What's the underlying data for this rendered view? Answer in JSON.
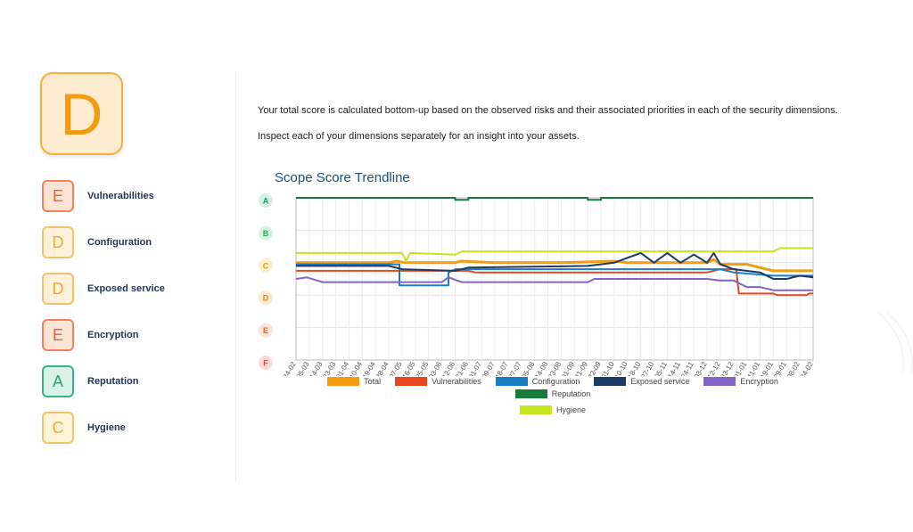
{
  "overall_grade": "D",
  "dimensions": [
    {
      "grade": "E",
      "label": "Vulnerabilities"
    },
    {
      "grade": "D",
      "label": "Configuration"
    },
    {
      "grade": "D",
      "label": "Exposed service"
    },
    {
      "grade": "E",
      "label": "Encryption"
    },
    {
      "grade": "A",
      "label": "Reputation"
    },
    {
      "grade": "C",
      "label": "Hygiene"
    }
  ],
  "intro": {
    "line1": "Your total score is calculated bottom-up based on the observed risks and their associated priorities in each of the security dimensions.",
    "line2": "Inspect each of your dimensions separately for an insight into your assets."
  },
  "chart_data": {
    "type": "line",
    "title": "Scope Score Trendline",
    "y_grades": [
      "A",
      "B",
      "C",
      "D",
      "E",
      "F"
    ],
    "y_grade_colors": {
      "A": {
        "bg": "#d4f1e4",
        "fg": "#1e9e67"
      },
      "B": {
        "bg": "#d6f3e2",
        "fg": "#27ae60"
      },
      "C": {
        "bg": "#fdf0cf",
        "fg": "#d4a017"
      },
      "D": {
        "bg": "#fdebd0",
        "fg": "#e67e22"
      },
      "E": {
        "bg": "#fbe3d6",
        "fg": "#e8642f"
      },
      "F": {
        "bg": "#fadbd8",
        "fg": "#e74c3c"
      }
    },
    "x_tick_labels": [
      "24-02",
      "05-03",
      "14-03",
      "23-03",
      "01-04",
      "10-04",
      "19-04",
      "28-04",
      "07-05",
      "16-05",
      "25-05",
      "03-06",
      "12-06",
      "21-06",
      "01-07",
      "09-07",
      "18-07",
      "27-07",
      "05-08",
      "14-08",
      "23-08",
      "01-09",
      "11-09",
      "22-09",
      "01-10",
      "10-10",
      "18-10",
      "27-10",
      "05-11",
      "14-11",
      "24-11",
      "03-12",
      "12-12",
      "23-12",
      "01-01",
      "11-01",
      "19-01",
      "29-01",
      "08-02",
      "24-02"
    ],
    "grid": true,
    "legend_position": "bottom",
    "series": [
      {
        "name": "Total",
        "color": "#f39c12",
        "width": 3,
        "points": [
          [
            0,
            2.0
          ],
          [
            7,
            2.0
          ],
          [
            7.6,
            1.95
          ],
          [
            8.2,
            2.0
          ],
          [
            12,
            2.0
          ],
          [
            12.4,
            1.95
          ],
          [
            15,
            2.0
          ],
          [
            20,
            2.0
          ],
          [
            24,
            1.95
          ],
          [
            25,
            2.0
          ],
          [
            31,
            2.0
          ],
          [
            31.5,
            1.9
          ],
          [
            32,
            2.05
          ],
          [
            34,
            2.05
          ],
          [
            35,
            2.15
          ],
          [
            36,
            2.25
          ],
          [
            39,
            2.25
          ]
        ]
      },
      {
        "name": "Vulnerabilities",
        "color": "#e8461e",
        "width": 2,
        "points": [
          [
            0,
            2.25
          ],
          [
            13,
            2.25
          ],
          [
            13.5,
            2.3
          ],
          [
            31,
            2.3
          ],
          [
            32,
            2.2
          ],
          [
            33.2,
            2.2
          ],
          [
            33.4,
            2.95
          ],
          [
            36,
            2.95
          ],
          [
            36.3,
            3.0
          ],
          [
            38.5,
            3.0
          ],
          [
            38.7,
            2.95
          ],
          [
            39,
            2.95
          ]
        ]
      },
      {
        "name": "Configuration",
        "color": "#1a7fc1",
        "width": 2,
        "points": [
          [
            0,
            2.05
          ],
          [
            7.8,
            2.05
          ],
          [
            7.8,
            2.7
          ],
          [
            11.5,
            2.7
          ],
          [
            11.5,
            2.3
          ],
          [
            12,
            2.2
          ],
          [
            31,
            2.2
          ],
          [
            32,
            2.2
          ],
          [
            33,
            2.3
          ],
          [
            36,
            2.4
          ],
          [
            39,
            2.4
          ]
        ]
      },
      {
        "name": "Exposed service",
        "color": "#1b3a64",
        "width": 2,
        "points": [
          [
            0,
            2.1
          ],
          [
            7,
            2.1
          ],
          [
            8,
            2.2
          ],
          [
            12,
            2.25
          ],
          [
            13,
            2.15
          ],
          [
            22,
            2.1
          ],
          [
            24,
            2.0
          ],
          [
            25,
            1.85
          ],
          [
            26,
            1.7
          ],
          [
            27,
            2.0
          ],
          [
            28,
            1.7
          ],
          [
            29,
            2.0
          ],
          [
            30,
            1.75
          ],
          [
            31,
            2.0
          ],
          [
            31.5,
            1.7
          ],
          [
            32,
            2.05
          ],
          [
            33,
            2.2
          ],
          [
            35,
            2.3
          ],
          [
            36,
            2.5
          ],
          [
            37,
            2.5
          ],
          [
            38,
            2.4
          ],
          [
            39,
            2.45
          ]
        ]
      },
      {
        "name": "Encryption",
        "color": "#8263c8",
        "width": 2,
        "points": [
          [
            0,
            2.5
          ],
          [
            0.8,
            2.45
          ],
          [
            2,
            2.6
          ],
          [
            11,
            2.6
          ],
          [
            11.5,
            2.45
          ],
          [
            12.5,
            2.6
          ],
          [
            22,
            2.6
          ],
          [
            22.5,
            2.5
          ],
          [
            31,
            2.5
          ],
          [
            32,
            2.55
          ],
          [
            33,
            2.55
          ],
          [
            34,
            2.75
          ],
          [
            35,
            2.75
          ],
          [
            36,
            2.85
          ],
          [
            39,
            2.85
          ]
        ]
      },
      {
        "name": "Reputation",
        "color": "#157a3a",
        "width": 2,
        "points": [
          [
            0,
            0.0
          ],
          [
            12,
            0.0
          ],
          [
            12,
            0.06
          ],
          [
            13,
            0.06
          ],
          [
            13,
            0.0
          ],
          [
            22,
            0.0
          ],
          [
            22,
            0.06
          ],
          [
            23,
            0.06
          ],
          [
            23,
            0.0
          ],
          [
            39,
            0.0
          ]
        ]
      },
      {
        "name": "Hygiene",
        "color": "#c6e51c",
        "width": 2,
        "points": [
          [
            0,
            1.7
          ],
          [
            8,
            1.7
          ],
          [
            8.3,
            1.95
          ],
          [
            8.6,
            1.7
          ],
          [
            12,
            1.75
          ],
          [
            12.5,
            1.65
          ],
          [
            30,
            1.65
          ],
          [
            33,
            1.65
          ],
          [
            36,
            1.65
          ],
          [
            36.5,
            1.55
          ],
          [
            39,
            1.55
          ]
        ]
      }
    ]
  }
}
